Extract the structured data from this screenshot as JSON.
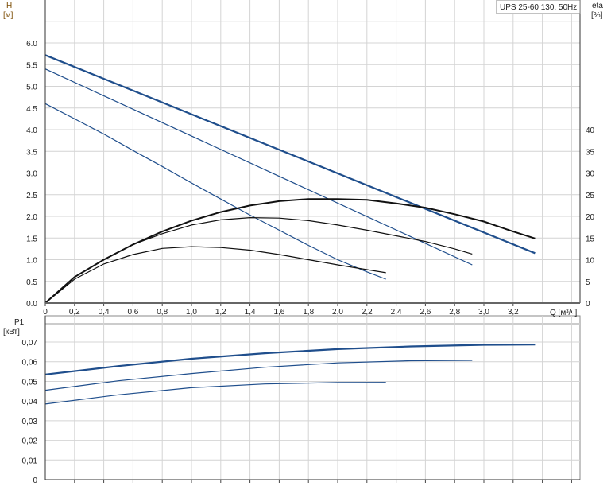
{
  "legend_title": "UPS 25-60 130, 50Hz",
  "chart_data": [
    {
      "type": "line",
      "ylabel": "H",
      "yunit": "[м]",
      "y2label": "eta",
      "y2unit": "[%]",
      "xlabel": "Q [м³/ч]",
      "xlim": [
        0,
        3.65
      ],
      "ylim": [
        0,
        7.0
      ],
      "y2lim": [
        0,
        70
      ],
      "grid": true,
      "x_ticks": [
        "0",
        "0,2",
        "0,4",
        "0,6",
        "0,8",
        "1,0",
        "1,2",
        "1,4",
        "1,6",
        "1,8",
        "2,0",
        "2,2",
        "2,4",
        "2,6",
        "2,8",
        "3,0",
        "3,2"
      ],
      "y_ticks": [
        "0.0",
        "0.5",
        "1.0",
        "1.5",
        "2.0",
        "2.5",
        "3.0",
        "3.5",
        "4.0",
        "4.5",
        "5.0",
        "5.5",
        "6.0"
      ],
      "y2_ticks": [
        "0",
        "5",
        "10",
        "15",
        "20",
        "25",
        "30",
        "35",
        "40"
      ],
      "series": [
        {
          "axis": "H",
          "color": "#1f4e8c",
          "width": 2.2,
          "x": [
            0,
            3.35
          ],
          "y": [
            5.72,
            1.15
          ]
        },
        {
          "axis": "H",
          "color": "#1f4e8c",
          "width": 1.2,
          "x": [
            0,
            2.92
          ],
          "y": [
            5.4,
            0.88
          ]
        },
        {
          "axis": "H",
          "color": "#1f4e8c",
          "width": 1.2,
          "x": [
            0,
            0.2,
            0.4,
            0.6,
            0.8,
            1.0,
            1.2,
            1.4,
            1.6,
            1.8,
            2.0,
            2.2,
            2.33
          ],
          "y": [
            4.6,
            4.25,
            3.9,
            3.52,
            3.15,
            2.77,
            2.4,
            2.03,
            1.68,
            1.33,
            1.0,
            0.72,
            0.55
          ]
        },
        {
          "axis": "eta",
          "color": "#111111",
          "width": 2.0,
          "x": [
            0,
            0.2,
            0.4,
            0.6,
            0.8,
            1.0,
            1.2,
            1.4,
            1.6,
            1.8,
            2.0,
            2.2,
            2.4,
            2.6,
            2.8,
            3.0,
            3.2,
            3.35
          ],
          "y": [
            0,
            6,
            10,
            13.5,
            16.5,
            19,
            21,
            22.5,
            23.5,
            24,
            24,
            23.8,
            23,
            22,
            20.5,
            18.8,
            16.5,
            14.9
          ]
        },
        {
          "axis": "eta",
          "color": "#111111",
          "width": 1.2,
          "x": [
            0,
            0.2,
            0.4,
            0.6,
            0.8,
            1.0,
            1.2,
            1.4,
            1.6,
            1.8,
            2.0,
            2.2,
            2.4,
            2.6,
            2.8,
            2.92
          ],
          "y": [
            0,
            6,
            10,
            13.5,
            16,
            18,
            19.2,
            19.7,
            19.6,
            19,
            18,
            16.8,
            15.5,
            14.2,
            12.5,
            11.3
          ]
        },
        {
          "axis": "eta",
          "color": "#111111",
          "width": 1.2,
          "x": [
            0,
            0.2,
            0.4,
            0.6,
            0.8,
            1.0,
            1.2,
            1.4,
            1.6,
            1.8,
            2.0,
            2.2,
            2.33
          ],
          "y": [
            0,
            5.5,
            9,
            11.2,
            12.6,
            13,
            12.8,
            12.2,
            11.2,
            10,
            8.8,
            7.7,
            7
          ]
        }
      ]
    },
    {
      "type": "line",
      "ylabel": "P1",
      "yunit": "[кВт]",
      "xlim": [
        0,
        3.65
      ],
      "ylim": [
        0,
        0.08
      ],
      "grid": true,
      "y_ticks": [
        "0",
        "0,01",
        "0,02",
        "0,03",
        "0,04",
        "0,05",
        "0,06",
        "0,07"
      ],
      "series": [
        {
          "color": "#1f4e8c",
          "width": 2.2,
          "x": [
            0,
            0.5,
            1.0,
            1.5,
            2.0,
            2.5,
            3.0,
            3.35
          ],
          "y": [
            0.0535,
            0.0578,
            0.0615,
            0.0643,
            0.0664,
            0.0678,
            0.0686,
            0.0687
          ]
        },
        {
          "color": "#1f4e8c",
          "width": 1.2,
          "x": [
            0,
            0.5,
            1.0,
            1.5,
            2.0,
            2.5,
            2.92
          ],
          "y": [
            0.0455,
            0.0503,
            0.054,
            0.0572,
            0.0594,
            0.0605,
            0.0607
          ]
        },
        {
          "color": "#1f4e8c",
          "width": 1.2,
          "x": [
            0,
            0.5,
            1.0,
            1.5,
            2.0,
            2.33
          ],
          "y": [
            0.0385,
            0.0432,
            0.0468,
            0.0487,
            0.0494,
            0.0495
          ]
        }
      ]
    }
  ]
}
